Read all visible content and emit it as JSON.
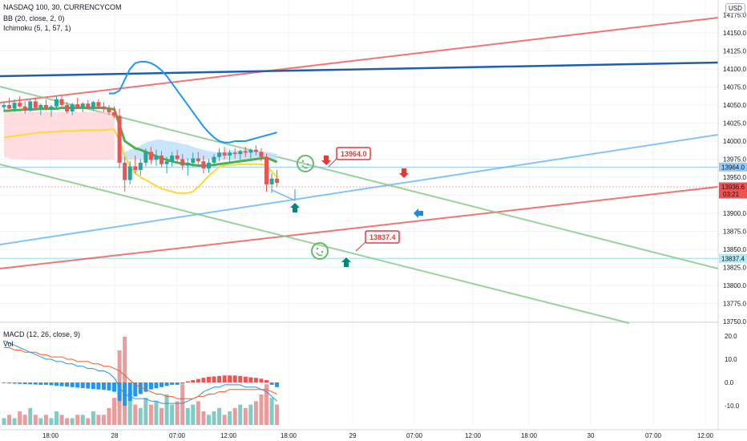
{
  "header": {
    "symbol": "NASDAQ 100, 30, CURRENCYCOM",
    "bb": "BB (20, close, 2, 0)",
    "ichimoku": "Ichimoku (5, 1, 57, 1)",
    "currency": "USD"
  },
  "macd_panel": {
    "macd_label": "MACD (12, 26, close, 9)",
    "vol_label": "Vol"
  },
  "chart_data": {
    "type": "candlestick",
    "x_ticks": [
      "18:00",
      "28",
      "07:00",
      "12:00",
      "18:00",
      "29",
      "07:00",
      "12:00",
      "18:00",
      "30",
      "07:00",
      "12:00"
    ],
    "y_ticks": [
      "14200.0",
      "14175.0",
      "14150.0",
      "14125.0",
      "14100.0",
      "14075.0",
      "14050.0",
      "14025.0",
      "14000.0",
      "13975.0",
      "13950.0",
      "13925.0",
      "13900.0",
      "13875.0",
      "13850.0",
      "13825.0",
      "13800.0",
      "13775.0",
      "13750.0"
    ],
    "macd_ticks": [
      "20.0",
      "10.0",
      "0.0",
      "-10.0"
    ],
    "price_tags": [
      {
        "value": "13964.0",
        "color": "#90caf9",
        "text_color": "#131722"
      },
      {
        "value": "13936.6",
        "color": "#ef5350",
        "text_color": "#ffffff",
        "sub": "03:21"
      },
      {
        "value": "13837.4",
        "color": "#b2ebf2",
        "text_color": "#131722"
      }
    ],
    "annotations": [
      {
        "text": "13964.0",
        "value": 13964.0
      },
      {
        "text": "13837.4",
        "value": 13837.4
      }
    ],
    "candles": [
      [
        14047,
        14055,
        14040,
        14050
      ],
      [
        14050,
        14060,
        14044,
        14045
      ],
      [
        14045,
        14058,
        14040,
        14053
      ],
      [
        14053,
        14062,
        14046,
        14048
      ],
      [
        14048,
        14055,
        14038,
        14042
      ],
      [
        14042,
        14058,
        14040,
        14055
      ],
      [
        14055,
        14060,
        14044,
        14046
      ],
      [
        14046,
        14052,
        14036,
        14050
      ],
      [
        14050,
        14057,
        14042,
        14044
      ],
      [
        14044,
        14050,
        14034,
        14048
      ],
      [
        14048,
        14062,
        14045,
        14058
      ],
      [
        14058,
        14063,
        14048,
        14050
      ],
      [
        14050,
        14054,
        14038,
        14041
      ],
      [
        14041,
        14053,
        14036,
        14051
      ],
      [
        14051,
        14060,
        14045,
        14047
      ],
      [
        14047,
        14054,
        14040,
        14052
      ],
      [
        14052,
        14057,
        14044,
        14046
      ],
      [
        14046,
        14056,
        14042,
        14054
      ],
      [
        14054,
        14058,
        14044,
        14048
      ],
      [
        14048,
        14054,
        14040,
        14044
      ],
      [
        14044,
        14050,
        14036,
        14040
      ],
      [
        14040,
        14048,
        14032,
        14035
      ],
      [
        14035,
        14045,
        13962,
        13970
      ],
      [
        13970,
        13978,
        13930,
        13946
      ],
      [
        13946,
        13972,
        13940,
        13965
      ],
      [
        13965,
        13980,
        13955,
        13960
      ],
      [
        13960,
        13975,
        13952,
        13970
      ],
      [
        13970,
        13990,
        13965,
        13985
      ],
      [
        13985,
        13992,
        13968,
        13974
      ],
      [
        13974,
        13988,
        13966,
        13980
      ],
      [
        13980,
        13986,
        13964,
        13968
      ],
      [
        13968,
        13978,
        13955,
        13972
      ],
      [
        13972,
        13985,
        13965,
        13980
      ],
      [
        13980,
        13988,
        13970,
        13975
      ],
      [
        13975,
        13982,
        13960,
        13966
      ],
      [
        13966,
        13976,
        13952,
        13970
      ],
      [
        13970,
        13984,
        13964,
        13976
      ],
      [
        13976,
        13985,
        13968,
        13972
      ],
      [
        13972,
        13980,
        13955,
        13962
      ],
      [
        13962,
        13975,
        13956,
        13970
      ],
      [
        13970,
        13982,
        13965,
        13978
      ],
      [
        13978,
        13990,
        13972,
        13984
      ],
      [
        13984,
        13992,
        13975,
        13980
      ],
      [
        13980,
        13988,
        13970,
        13984
      ],
      [
        13984,
        13990,
        13976,
        13982
      ],
      [
        13982,
        13988,
        13974,
        13986
      ],
      [
        13986,
        13992,
        13978,
        13984
      ],
      [
        13984,
        13990,
        13976,
        13988
      ],
      [
        13988,
        13994,
        13980,
        13985
      ],
      [
        13985,
        13990,
        13972,
        13978
      ],
      [
        13978,
        13982,
        13930,
        13940
      ],
      [
        13940,
        13955,
        13928,
        13948
      ],
      [
        13948,
        13960,
        13936,
        13942
      ]
    ],
    "bb_upper": [
      14060,
      14062,
      14063,
      14063,
      14064,
      14064,
      14064,
      14065,
      14065,
      14065,
      14066,
      14066,
      14066,
      14066,
      14066,
      14066,
      14067,
      14067,
      14067,
      14067,
      14066,
      14066,
      14070,
      14085,
      14100,
      14108,
      14110,
      14110,
      14108,
      14104,
      14098,
      14090,
      14080,
      14070,
      14060,
      14050,
      14040,
      14030,
      14020,
      14012,
      14005,
      14000,
      13998,
      13998,
      14000,
      14000,
      14000,
      14002,
      14004,
      14006,
      14008,
      14010,
      14012
    ],
    "bb_mid": [
      14030,
      14031,
      14032,
      14033,
      14034,
      14035,
      14036,
      14037,
      14037,
      14038,
      14038,
      14039,
      14039,
      14039,
      14039,
      14040,
      14040,
      14040,
      14040,
      14040,
      14040,
      14039,
      14034,
      14030,
      14026,
      14022,
      14018,
      14014,
      14010,
      14006,
      14002,
      13998,
      13995,
      13992,
      13990,
      13988,
      13985,
      13982,
      13978,
      13974,
      13972,
      13972,
      13972,
      13973,
      13974,
      13974,
      13974,
      13975,
      13976,
      13976,
      13976,
      13972,
      13968
    ],
    "bb_lower": [
      14005,
      14006,
      14007,
      14008,
      14009,
      14010,
      14011,
      14012,
      14012,
      14013,
      14013,
      14014,
      14014,
      14014,
      14014,
      14015,
      14015,
      14015,
      14015,
      14015,
      14016,
      14016,
      14000,
      13980,
      13965,
      13955,
      13950,
      13946,
      13942,
      13938,
      13934,
      13932,
      13930,
      13928,
      13928,
      13928,
      13930,
      13936,
      13944,
      13952,
      13958,
      13964,
      13966,
      13967,
      13967,
      13968,
      13968,
      13968,
      13968,
      13968,
      13966,
      13958,
      13950
    ],
    "tenkan": [
      14042,
      14042,
      14043,
      14043,
      14044,
      14044,
      14044,
      14045,
      14045,
      14045,
      14045,
      14046,
      14046,
      14046,
      14046,
      14046,
      14046,
      14046,
      14046,
      14046,
      14045,
      14044,
      14022,
      14000,
      13995,
      13990,
      13988,
      13985,
      13982,
      13979,
      13976,
      13974,
      13972,
      13970,
      13969,
      13968,
      13967,
      13966,
      13966,
      13966,
      13967,
      13968,
      13969,
      13970,
      13971,
      13972,
      13973,
      13974,
      13975,
      13976,
      13977,
      13974,
      13971
    ],
    "cloud_a": [
      14040,
      14040,
      14040,
      14040,
      14040,
      14040,
      14040,
      14040,
      14040,
      14040,
      14040,
      14040,
      14040,
      14040,
      14040,
      14040,
      14040,
      14040,
      14040,
      14040,
      14040,
      14040,
      13990,
      13985,
      13988,
      13990,
      13994,
      13998,
      14000,
      14002,
      14002,
      14000,
      13999,
      13998,
      13996,
      13995,
      13992,
      13990,
      13988,
      13986,
      13985,
      13985,
      13985,
      13986,
      13987,
      13987,
      13988,
      13988,
      13988,
      13986,
      13985,
      13984,
      13982
    ],
    "cloud_b": [
      13978,
      13976,
      13975,
      13975,
      13974,
      13974,
      13974,
      13974,
      13974,
      13974,
      13974,
      13974,
      13974,
      13974,
      13974,
      13974,
      13974,
      13974,
      13974,
      13974,
      13974,
      13974,
      13974,
      13974,
      13974,
      13974,
      13974,
      13974,
      13974,
      13974,
      13974,
      13974,
      13974,
      13974,
      13974,
      13974,
      13974,
      13974,
      13974,
      13974,
      13974,
      13974,
      13974,
      13974,
      13974,
      13974,
      13974,
      13974,
      13974,
      13974,
      13974,
      13974,
      13974
    ],
    "macd": [
      18,
      17,
      16,
      15,
      14,
      13,
      12,
      11,
      10,
      10,
      9,
      9,
      8,
      8,
      7,
      7,
      6,
      6,
      5,
      5,
      4,
      2,
      -2,
      -5,
      -6,
      -7,
      -7,
      -7,
      -8,
      -8,
      -9,
      -9,
      -9,
      -9,
      -9,
      -8,
      -7,
      -6,
      -4,
      -3,
      -2,
      -2,
      -1,
      -1,
      -1,
      -1,
      -2,
      -2,
      -2,
      -3,
      -4,
      -6,
      -8
    ],
    "signal": [
      15,
      15,
      14,
      14,
      13,
      13,
      13,
      12,
      12,
      11,
      11,
      11,
      10,
      10,
      9,
      9,
      9,
      8,
      8,
      7,
      7,
      6,
      5,
      3,
      1,
      -1,
      -2,
      -3,
      -4,
      -5,
      -5,
      -6,
      -6,
      -7,
      -7,
      -7,
      -7,
      -6,
      -6,
      -5,
      -5,
      -4,
      -4,
      -3,
      -3,
      -3,
      -3,
      -3,
      -3,
      -3,
      -3,
      -4,
      -5
    ],
    "hist": [
      -0.3,
      -0.4,
      -0.5,
      -0.6,
      -0.7,
      -0.8,
      -0.9,
      -1,
      -1,
      -1.2,
      -1.4,
      -1.6,
      -1.8,
      -2,
      -2.2,
      -2.4,
      -2.6,
      -2.8,
      -3,
      -3.2,
      -3.4,
      -4,
      -8,
      -10,
      -8,
      -6,
      -5,
      -4,
      -3,
      -2.5,
      -2,
      -1.5,
      -1,
      -1,
      -0.5,
      0.5,
      1,
      1.5,
      2,
      2.4,
      2.6,
      2.8,
      3,
      3,
      3,
      2.8,
      2.5,
      2.2,
      2,
      1.6,
      1,
      -1,
      -2
    ],
    "vol": [
      2,
      3,
      2,
      4,
      3,
      5,
      3,
      2,
      3,
      2,
      4,
      3,
      2,
      2,
      3,
      3,
      2,
      4,
      3,
      3,
      5,
      8,
      22,
      26,
      10,
      6,
      5,
      8,
      6,
      7,
      5,
      9,
      6,
      7,
      12,
      5,
      6,
      7,
      4,
      3,
      4,
      5,
      3,
      4,
      5,
      6,
      5,
      6,
      7,
      9,
      12,
      8,
      6
    ]
  }
}
